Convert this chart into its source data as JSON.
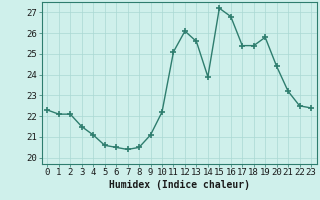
{
  "x": [
    0,
    1,
    2,
    3,
    4,
    5,
    6,
    7,
    8,
    9,
    10,
    11,
    12,
    13,
    14,
    15,
    16,
    17,
    18,
    19,
    20,
    21,
    22,
    23
  ],
  "y": [
    22.3,
    22.1,
    22.1,
    21.5,
    21.1,
    20.6,
    20.5,
    20.4,
    20.5,
    21.1,
    22.2,
    25.1,
    26.1,
    25.6,
    23.9,
    27.2,
    26.8,
    25.4,
    25.4,
    25.8,
    24.4,
    23.2,
    22.5,
    22.4
  ],
  "xlabel": "Humidex (Indice chaleur)",
  "ylim": [
    19.7,
    27.5
  ],
  "xlim": [
    -0.5,
    23.5
  ],
  "yticks": [
    20,
    21,
    22,
    23,
    24,
    25,
    26,
    27
  ],
  "xticks": [
    0,
    1,
    2,
    3,
    4,
    5,
    6,
    7,
    8,
    9,
    10,
    11,
    12,
    13,
    14,
    15,
    16,
    17,
    18,
    19,
    20,
    21,
    22,
    23
  ],
  "line_color": "#2e7d6e",
  "marker": "+",
  "marker_size": 4,
  "marker_linewidth": 1.2,
  "line_width": 1.0,
  "bg_color": "#cff0eb",
  "grid_color": "#aad8d3",
  "xlabel_fontsize": 7,
  "tick_fontsize": 6.5
}
